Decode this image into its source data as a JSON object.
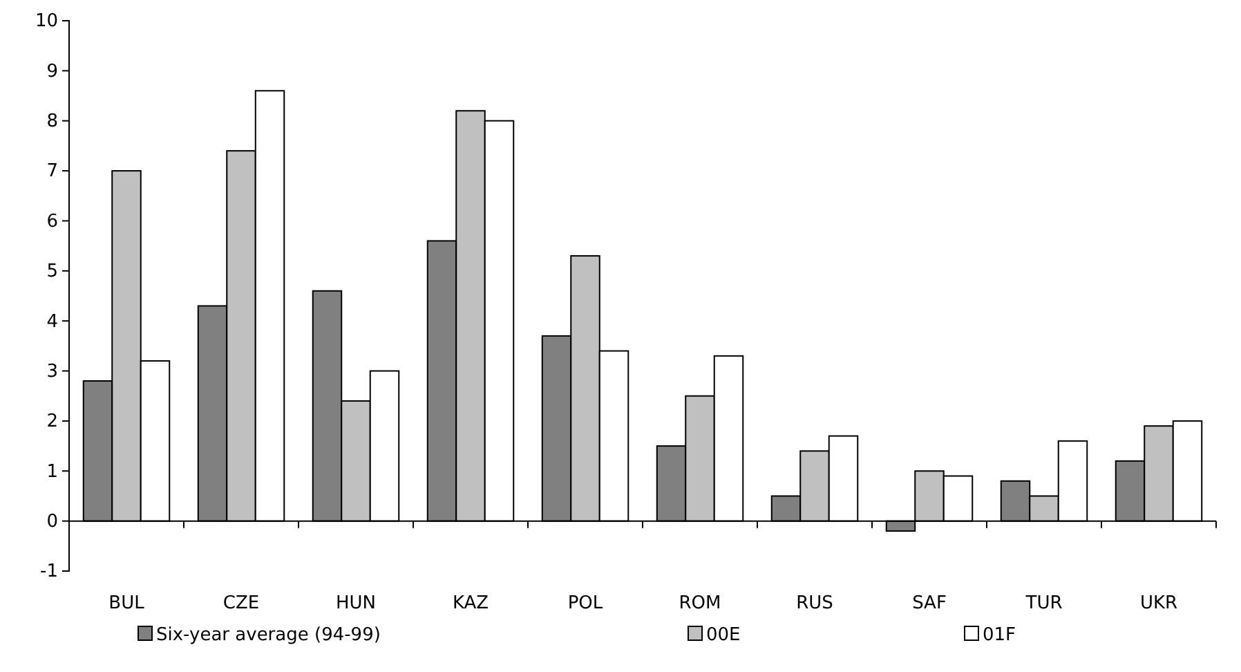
{
  "chart_data": {
    "type": "bar",
    "categories": [
      "BUL",
      "CZE",
      "HUN",
      "KAZ",
      "POL",
      "ROM",
      "RUS",
      "SAF",
      "TUR",
      "UKR"
    ],
    "series": [
      {
        "name": "Six-year average (94-99)",
        "color": "#808080",
        "values": [
          2.8,
          4.3,
          4.6,
          5.6,
          3.7,
          1.5,
          0.5,
          -0.2,
          0.8,
          1.2
        ]
      },
      {
        "name": "00E",
        "color": "#c0c0c0",
        "values": [
          7.0,
          7.4,
          2.4,
          8.2,
          5.3,
          2.5,
          1.4,
          1.0,
          0.5,
          1.9
        ]
      },
      {
        "name": "01F",
        "color": "#ffffff",
        "values": [
          3.2,
          8.6,
          3.0,
          8.0,
          3.4,
          3.3,
          1.7,
          0.9,
          1.6,
          2.0
        ]
      }
    ],
    "ylim": [
      -1,
      10
    ],
    "yticks": [
      -1,
      0,
      1,
      2,
      3,
      4,
      5,
      6,
      7,
      8,
      9,
      10
    ],
    "legend": "bottom"
  }
}
